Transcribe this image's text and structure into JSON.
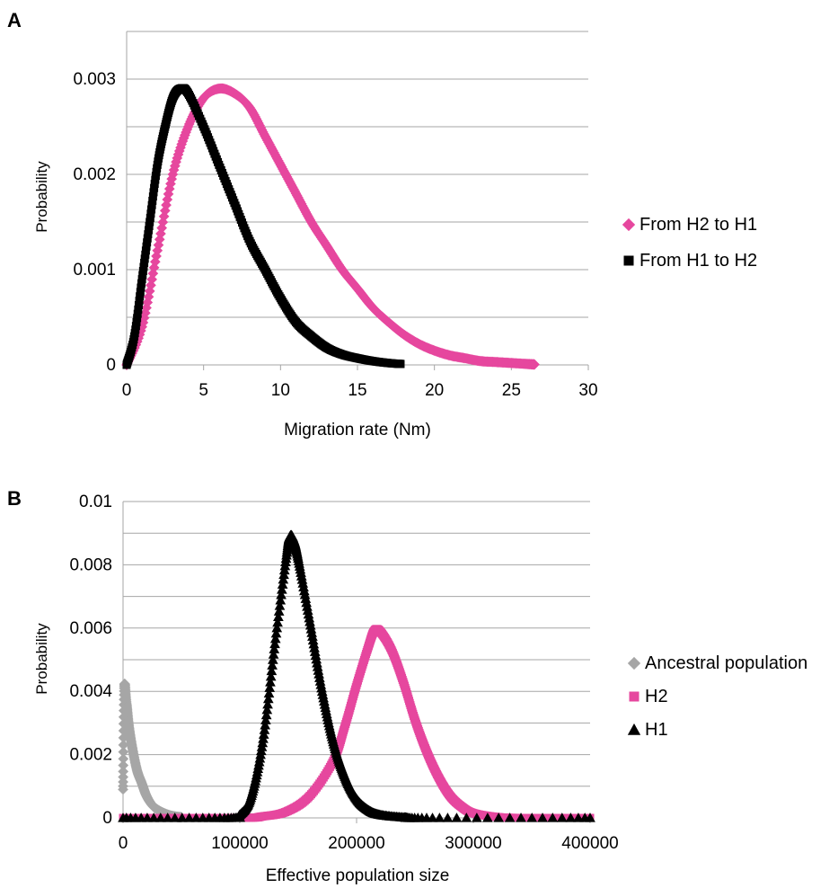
{
  "chart_data": [
    {
      "panel": "A",
      "type": "scatter",
      "xlabel": "Migration rate (Nm)",
      "ylabel": "Probability",
      "xlim": [
        0,
        30
      ],
      "ylim": [
        0,
        0.0035
      ],
      "x_ticks": [
        "0",
        "5",
        "10",
        "15",
        "20",
        "25",
        "30"
      ],
      "y_ticks": [
        "0",
        "0.001",
        "0.002",
        "0.003"
      ],
      "grid": true,
      "legend_position": "right",
      "series": [
        {
          "name": "From H2 to H1",
          "color": "#e6479e",
          "marker": "diamond",
          "points": [
            [
              0,
              0
            ],
            [
              1,
              0.0004
            ],
            [
              2,
              0.0012
            ],
            [
              3,
              0.002
            ],
            [
              4,
              0.0025
            ],
            [
              5,
              0.0028
            ],
            [
              6,
              0.0029
            ],
            [
              7,
              0.00285
            ],
            [
              8,
              0.0027
            ],
            [
              9,
              0.0024
            ],
            [
              10,
              0.0021
            ],
            [
              11,
              0.0018
            ],
            [
              12,
              0.0015
            ],
            [
              13,
              0.00125
            ],
            [
              14,
              0.001
            ],
            [
              15,
              0.0008
            ],
            [
              16,
              0.0006
            ],
            [
              17,
              0.00045
            ],
            [
              18,
              0.00032
            ],
            [
              19,
              0.00022
            ],
            [
              20,
              0.00015
            ],
            [
              21,
              0.0001
            ],
            [
              22,
              7e-05
            ],
            [
              23,
              4e-05
            ],
            [
              24,
              3e-05
            ],
            [
              25,
              2e-05
            ],
            [
              26,
              1e-05
            ],
            [
              26.5,
              5e-06
            ]
          ]
        },
        {
          "name": "From H1 to H2",
          "color": "#000000",
          "marker": "square",
          "points": [
            [
              0,
              0
            ],
            [
              0.5,
              0.0003
            ],
            [
              1,
              0.0009
            ],
            [
              1.5,
              0.0015
            ],
            [
              2,
              0.0021
            ],
            [
              2.5,
              0.0025
            ],
            [
              3,
              0.0028
            ],
            [
              3.5,
              0.0029
            ],
            [
              4,
              0.00285
            ],
            [
              5,
              0.0025
            ],
            [
              6,
              0.0021
            ],
            [
              7,
              0.0017
            ],
            [
              8,
              0.0013
            ],
            [
              9,
              0.001
            ],
            [
              10,
              0.0007
            ],
            [
              11,
              0.00045
            ],
            [
              12,
              0.0003
            ],
            [
              13,
              0.00018
            ],
            [
              14,
              0.00011
            ],
            [
              15,
              7e-05
            ],
            [
              16,
              4e-05
            ],
            [
              17,
              2e-05
            ],
            [
              17.8,
              1e-05
            ]
          ]
        }
      ]
    },
    {
      "panel": "B",
      "type": "scatter",
      "xlabel": "Effective population size",
      "ylabel": "Probability",
      "xlim": [
        0,
        400000
      ],
      "ylim": [
        0,
        0.01
      ],
      "x_ticks": [
        "0",
        "100000",
        "200000",
        "300000",
        "400000"
      ],
      "y_ticks": [
        "0",
        "0.002",
        "0.004",
        "0.006",
        "0.008",
        "0.01"
      ],
      "grid": true,
      "legend_position": "right",
      "series": [
        {
          "name": "Ancestral population",
          "color": "#a6a6a6",
          "marker": "diamond",
          "points": [
            [
              0,
              0.0009
            ],
            [
              1000,
              0.0041
            ],
            [
              3000,
              0.0036
            ],
            [
              5000,
              0.0029
            ],
            [
              8000,
              0.0022
            ],
            [
              12000,
              0.0015
            ],
            [
              16000,
              0.0011
            ],
            [
              20000,
              0.0007
            ],
            [
              25000,
              0.0004
            ],
            [
              30000,
              0.00025
            ],
            [
              35000,
              0.00015
            ],
            [
              40000,
              8e-05
            ],
            [
              45000,
              4e-05
            ],
            [
              50000,
              2e-05
            ]
          ]
        },
        {
          "name": "H2",
          "color": "#e6479e",
          "marker": "square",
          "points": [
            [
              0,
              0
            ],
            [
              100000,
              0
            ],
            [
              120000,
              5e-05
            ],
            [
              140000,
              0.0002
            ],
            [
              160000,
              0.0007
            ],
            [
              180000,
              0.0018
            ],
            [
              190000,
              0.0029
            ],
            [
              200000,
              0.0042
            ],
            [
              210000,
              0.0054
            ],
            [
              215000,
              0.0059
            ],
            [
              220000,
              0.0059
            ],
            [
              230000,
              0.0053
            ],
            [
              240000,
              0.0043
            ],
            [
              250000,
              0.0031
            ],
            [
              260000,
              0.0021
            ],
            [
              270000,
              0.0013
            ],
            [
              280000,
              0.0007
            ],
            [
              290000,
              0.00035
            ],
            [
              300000,
              0.00015
            ],
            [
              320000,
              3e-05
            ],
            [
              340000,
              0
            ],
            [
              400000,
              0
            ]
          ]
        },
        {
          "name": "H1",
          "color": "#000000",
          "marker": "triangle",
          "points": [
            [
              0,
              0
            ],
            [
              90000,
              0
            ],
            [
              100000,
              0.0001
            ],
            [
              110000,
              0.0007
            ],
            [
              120000,
              0.0025
            ],
            [
              130000,
              0.0055
            ],
            [
              140000,
              0.0083
            ],
            [
              143000,
              0.0089
            ],
            [
              146000,
              0.0088
            ],
            [
              150000,
              0.0082
            ],
            [
              160000,
              0.0062
            ],
            [
              170000,
              0.0041
            ],
            [
              180000,
              0.0024
            ],
            [
              190000,
              0.0013
            ],
            [
              200000,
              0.0006
            ],
            [
              210000,
              0.00025
            ],
            [
              220000,
              0.0001
            ],
            [
              240000,
              2e-05
            ],
            [
              260000,
              0
            ],
            [
              400000,
              0
            ]
          ]
        }
      ]
    }
  ]
}
